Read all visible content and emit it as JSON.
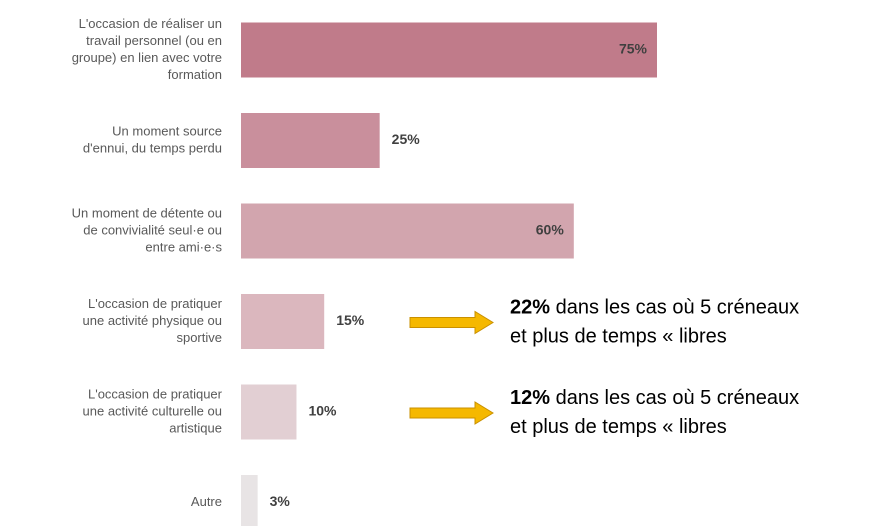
{
  "chart_data": {
    "type": "bar",
    "orientation": "horizontal",
    "categories": [
      [
        "L'occasion de réaliser un",
        "travail personnel (ou en",
        "groupe) en lien avec votre",
        "formation"
      ],
      [
        "Un moment source",
        "d'ennui, du temps perdu"
      ],
      [
        "Un moment de détente ou",
        "de convivialité seul·e ou",
        "entre ami·e·s"
      ],
      [
        "L'occasion de pratiquer",
        "une activité physique ou",
        "sportive"
      ],
      [
        "L'occasion de pratiquer",
        "une activité culturelle ou",
        "artistique"
      ],
      [
        "Autre"
      ]
    ],
    "values": [
      75,
      25,
      60,
      15,
      10,
      3
    ],
    "value_labels": [
      "75%",
      "25%",
      "60%",
      "15%",
      "10%",
      "3%"
    ],
    "colors": [
      "#c07b8a",
      "#c98f9c",
      "#d2a5ae",
      "#dbb7be",
      "#e2cfd3",
      "#e8e4e5"
    ],
    "xlim": [
      0,
      75
    ],
    "annotations": [
      {
        "category": 3,
        "bold": "22%",
        "lines": [
          "dans les cas où 5 créneaux",
          "et plus de temps « libres"
        ]
      },
      {
        "category": 4,
        "bold": "12%",
        "lines": [
          "dans les cas où 5 créneaux",
          "et plus de temps « libres"
        ]
      }
    ]
  }
}
